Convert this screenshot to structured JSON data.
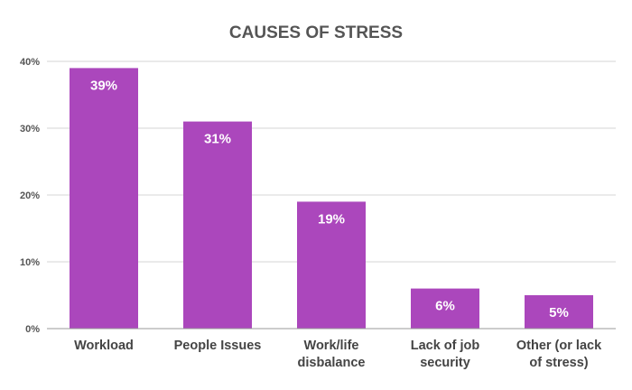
{
  "chart_data": {
    "type": "bar",
    "title": "CAUSES OF STRESS",
    "xlabel": "",
    "ylabel": "",
    "categories": [
      [
        "Workload"
      ],
      [
        "People Issues"
      ],
      [
        "Work/life",
        "disbalance"
      ],
      [
        "Lack of job",
        "security"
      ],
      [
        "Other (or lack",
        "of stress)"
      ]
    ],
    "values": [
      39,
      31,
      19,
      6,
      5
    ],
    "data_labels": [
      "39%",
      "31%",
      "19%",
      "6%",
      "5%"
    ],
    "ylim": [
      0,
      40
    ],
    "yticks": [
      0,
      10,
      20,
      30,
      40
    ],
    "ytick_labels": [
      "0%",
      "10%",
      "20%",
      "30%",
      "40%"
    ],
    "grid": true,
    "legend": "none",
    "bar_color": "#ab47bc"
  }
}
